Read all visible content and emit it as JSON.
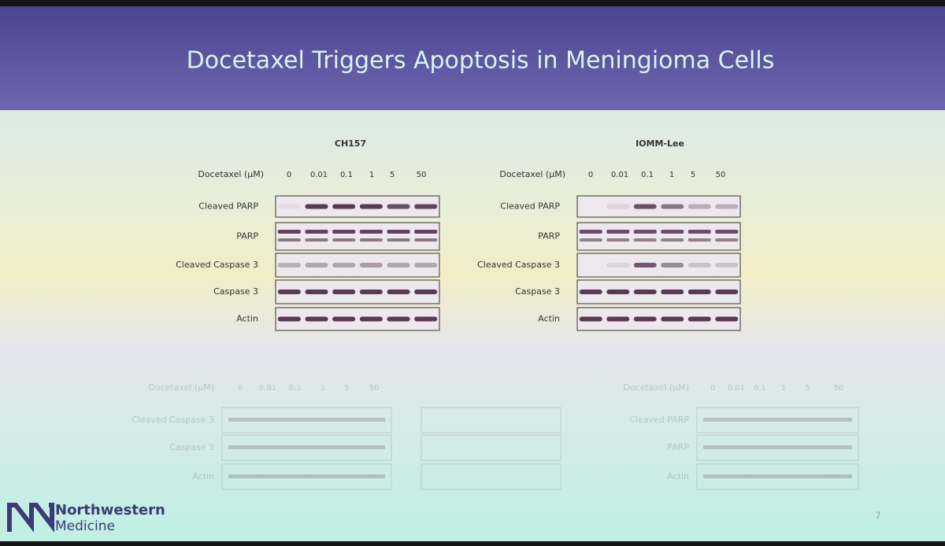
{
  "title": "Docetaxel Triggers Apoptosis in Meningioma Cells",
  "panels": [
    {
      "title": "CH157",
      "dose_label": "Docetaxel (µM)",
      "doses": [
        "0",
        "0.01",
        "0.1",
        "1",
        "5",
        "50"
      ],
      "blots": [
        "Cleaved PARP",
        "PARP",
        "Cleaved Caspase 3",
        "Caspase 3",
        "Actin"
      ]
    },
    {
      "title": "IOMM-Lee",
      "dose_label": "Docetaxel (µM)",
      "doses": [
        "0",
        "0.01",
        "0.1",
        "1",
        "5",
        "50"
      ],
      "blots": [
        "Cleaved PARP",
        "PARP",
        "Cleaved Caspase 3",
        "Caspase 3",
        "Actin"
      ]
    }
  ],
  "faded_panels": [
    {
      "dose_label": "Docetaxel (µM)",
      "doses": [
        "0",
        "0.01",
        "0.1",
        "1",
        "5",
        "50"
      ],
      "blots": [
        "Cleaved Caspase 3",
        "Caspase 3",
        "Actin"
      ]
    },
    {
      "dose_label": "Docetaxel (µM)",
      "doses": [
        "0",
        "0.01",
        "0.1",
        "1",
        "5",
        "50"
      ],
      "blots": [
        "Cleaved PARP",
        "PARP",
        "Actin"
      ]
    }
  ],
  "footer": {
    "logo_line1": "Northwestern",
    "logo_line2": "Medicine",
    "page_number": "7"
  }
}
